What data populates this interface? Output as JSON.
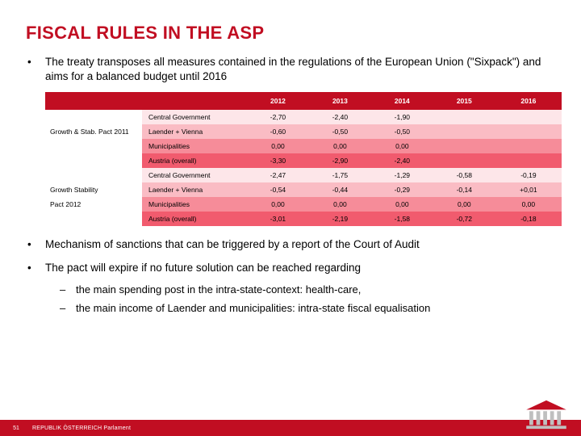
{
  "title": "FISCAL RULES IN THE ASP",
  "bullets": {
    "b1": "The treaty transposes all measures contained in the regulations of the European Union (\"Sixpack\") and aims for a balanced budget until 2016",
    "b2": "Mechanism of sanctions that can be triggered by a report of the Court of Audit",
    "b3": "The pact will expire if no future solution can be reached regarding",
    "s1": "the main spending post in the intra-state-context: health-care,",
    "s2": "the main income of Laender and municipalities: intra-state fiscal equalisation"
  },
  "table": {
    "years": [
      "2012",
      "2013",
      "2014",
      "2015",
      "2016"
    ],
    "group1_label": "Growth & Stab. Pact 2011",
    "group2_label_a": "Growth Stability",
    "group2_label_b": "Pact 2012",
    "row_labels": [
      "Central Government",
      "Laender + Vienna",
      "Municipalities",
      "Austria (overall)"
    ],
    "group1_values": [
      [
        "-2,70",
        "-2,40",
        "-1,90",
        "",
        ""
      ],
      [
        "-0,60",
        "-0,50",
        "-0,50",
        "",
        ""
      ],
      [
        "0,00",
        "0,00",
        "0,00",
        "",
        ""
      ],
      [
        "-3,30",
        "-2,90",
        "-2,40",
        "",
        ""
      ]
    ],
    "group2_values": [
      [
        "-2,47",
        "-1,75",
        "-1,29",
        "-0,58",
        "-0,19"
      ],
      [
        "-0,54",
        "-0,44",
        "-0,29",
        "-0,14",
        "+0,01"
      ],
      [
        "0,00",
        "0,00",
        "0,00",
        "0,00",
        "0,00"
      ],
      [
        "-3,01",
        "-2,19",
        "-1,58",
        "-0,72",
        "-0,18"
      ]
    ],
    "row_colors_g1": [
      "#fde6e9",
      "#fabcc4",
      "#f68c99",
      "#f15b6e"
    ],
    "row_colors_g2": [
      "#fde6e9",
      "#fabcc4",
      "#f68c99",
      "#f15b6e"
    ],
    "header_bg": "#c10e22"
  },
  "footer": {
    "page": "51",
    "org": "REPUBLIK ÖSTERREICH  Parlament"
  },
  "colors": {
    "accent": "#c10e22",
    "logo_roof": "#c10e22",
    "logo_col": "#bfbfbf"
  }
}
